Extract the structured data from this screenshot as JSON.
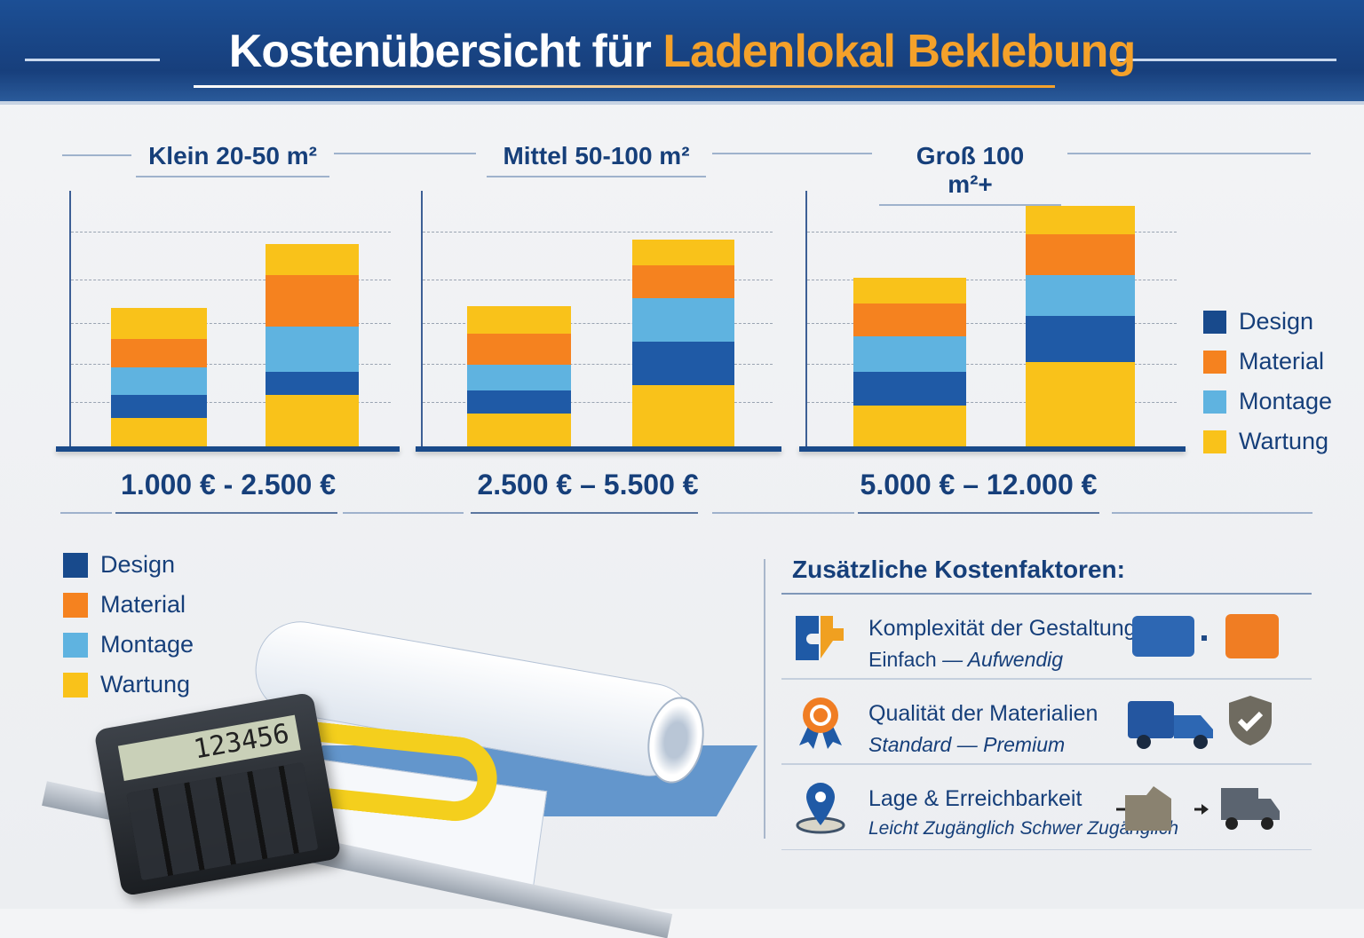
{
  "header": {
    "title_main": "Kostenübersicht für",
    "title_accent": "Ladenlokal Beklebung"
  },
  "colors": {
    "design": "#1f5aa6",
    "material": "#f5821f",
    "montage": "#5fb3e0",
    "wartung": "#f9c21a",
    "legend_design": "#184a8c",
    "header": "#1c4f95",
    "accent": "#f4a12a"
  },
  "chart_data": [
    {
      "type": "bar",
      "stacked": true,
      "title": "Klein 20-50 m²",
      "price_range": "1.000 € - 2.500 €",
      "ylim": [
        0,
        100
      ],
      "grid": true,
      "series": [
        {
          "name": "Wartung",
          "values": [
            11,
            20
          ]
        },
        {
          "name": "Design",
          "values": [
            9,
            9
          ]
        },
        {
          "name": "Montage",
          "values": [
            11,
            18
          ]
        },
        {
          "name": "Material",
          "values": [
            11,
            20
          ]
        },
        {
          "name": "Wartung",
          "values": [
            12,
            12
          ]
        }
      ]
    },
    {
      "type": "bar",
      "stacked": true,
      "title": "Mittel 50-100 m²",
      "price_range": "2.500 € – 5.500 €",
      "ylim": [
        0,
        100
      ],
      "grid": true,
      "series": [
        {
          "name": "Wartung",
          "values": [
            13,
            24
          ]
        },
        {
          "name": "Design",
          "values": [
            9,
            17
          ]
        },
        {
          "name": "Montage",
          "values": [
            10,
            17
          ]
        },
        {
          "name": "Material",
          "values": [
            12,
            13
          ]
        },
        {
          "name": "Wartung",
          "values": [
            11,
            10
          ]
        }
      ]
    },
    {
      "type": "bar",
      "stacked": true,
      "title": "Groß 100 m²+",
      "price_range": "5.000 € – 12.000 €",
      "ylim": [
        0,
        100
      ],
      "grid": true,
      "series": [
        {
          "name": "Wartung",
          "values": [
            16,
            33
          ]
        },
        {
          "name": "Design",
          "values": [
            13,
            18
          ]
        },
        {
          "name": "Montage",
          "values": [
            14,
            16
          ]
        },
        {
          "name": "Material",
          "values": [
            13,
            16
          ]
        },
        {
          "name": "Wartung",
          "values": [
            10,
            11
          ]
        }
      ]
    }
  ],
  "legend": [
    "Design",
    "Material",
    "Montage",
    "Wartung"
  ],
  "calculator": {
    "display": "123456"
  },
  "factors": {
    "title": "Zusätzliche Kostenfaktoren:",
    "items": [
      {
        "title": "Komplexität der Gestaltung",
        "from": "Einfach",
        "sep": "—",
        "to": "Aufwendig",
        "icon": "puzzle-icon"
      },
      {
        "title": "Qualität der Materialien",
        "from": "Standard",
        "sep": "—",
        "to": "Premium",
        "icon": "award-ribbon-icon"
      },
      {
        "title": "Lage & Erreichbarkeit",
        "from": "Leicht Zugänglich",
        "sep": "",
        "to": "Schwer Zugänglich",
        "icon": "map-pin-icon"
      }
    ]
  }
}
